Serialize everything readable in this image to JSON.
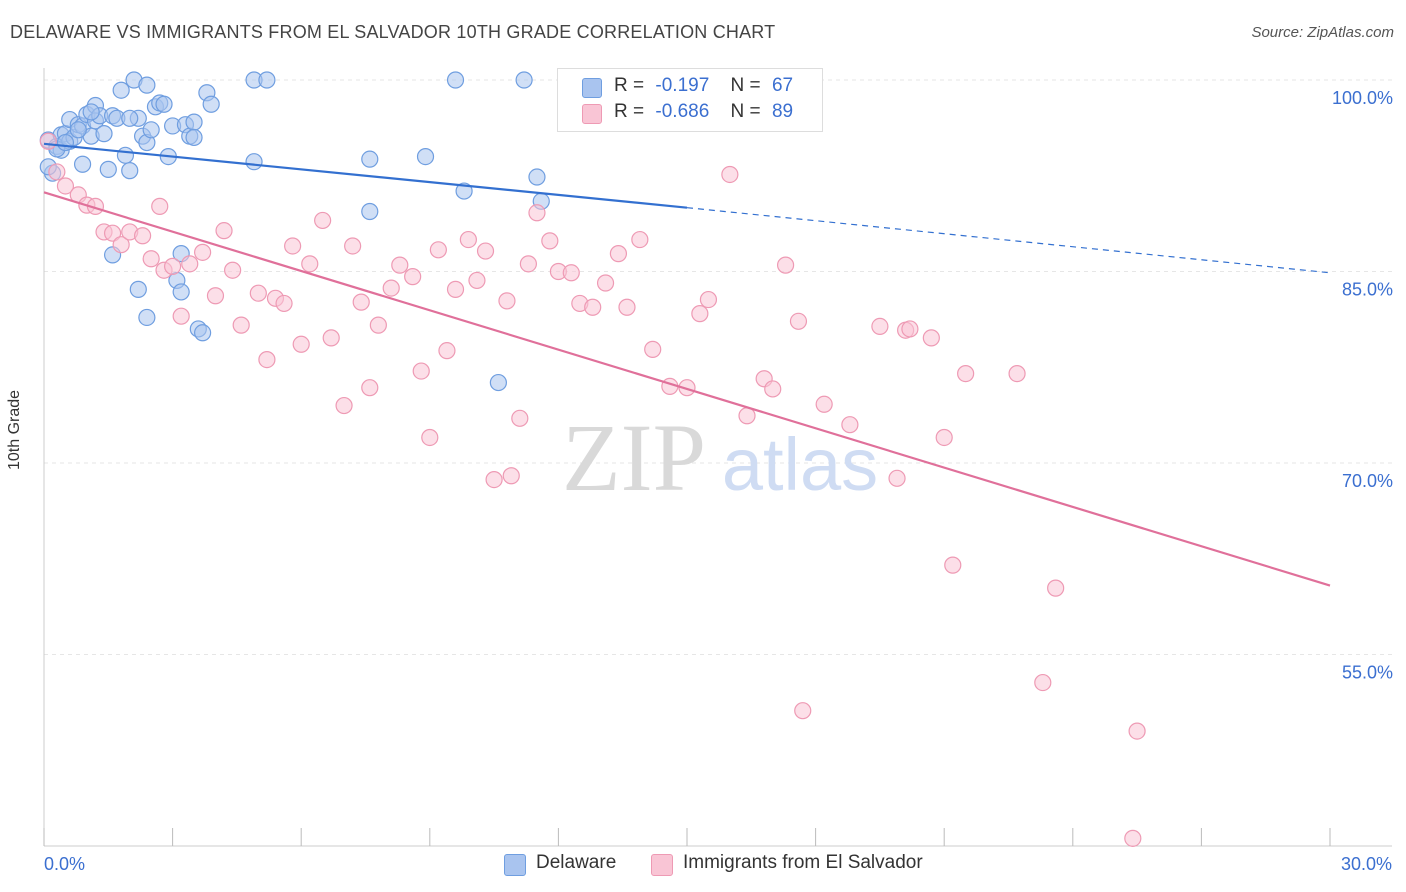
{
  "title": "DELAWARE VS IMMIGRANTS FROM EL SALVADOR 10TH GRADE CORRELATION CHART",
  "source": "Source: ZipAtlas.com",
  "watermark": {
    "zip": "ZIP",
    "atlas": "atlas"
  },
  "stats": [
    {
      "r_label": "R =",
      "r_value": "-0.197",
      "n_label": "N =",
      "n_value": "67",
      "color": "#a9c4ef",
      "border": "#6f9ee0"
    },
    {
      "r_label": "R =",
      "r_value": "-0.686",
      "n_label": "N =",
      "n_value": "89",
      "color": "#f9c5d5",
      "border": "#ee9ab4"
    }
  ],
  "legend": [
    {
      "label": "Delaware",
      "color": "#a9c4ef",
      "border": "#6f9ee0"
    },
    {
      "label": "Immigrants from El Salvador",
      "color": "#f9c5d5",
      "border": "#ee9ab4"
    }
  ],
  "chart_data": {
    "type": "scatter",
    "title": "DELAWARE VS IMMIGRANTS FROM EL SALVADOR 10TH GRADE CORRELATION CHART",
    "xlabel": "",
    "ylabel": "10th Grade",
    "xlim": [
      0,
      30
    ],
    "ylim": [
      40,
      100
    ],
    "x_tick_labels": [
      "0.0%",
      "30.0%"
    ],
    "y_tick_labels": [
      {
        "value": 100,
        "label": "100.0%"
      },
      {
        "value": 85,
        "label": "85.0%"
      },
      {
        "value": 70,
        "label": "70.0%"
      },
      {
        "value": 55,
        "label": "55.0%"
      }
    ],
    "grid": true,
    "series": [
      {
        "name": "Delaware",
        "color": "#6f9ee0",
        "fill": "#a9c4ef",
        "trend": {
          "x0": 0,
          "y0": 95.0,
          "x1": 15.0,
          "y1": 90.0,
          "dashed_to_x": 30.0,
          "dashed_to_y": 84.9,
          "color": "#3370d0"
        },
        "points": [
          [
            0.1,
            95.3
          ],
          [
            0.2,
            92.7
          ],
          [
            0.3,
            94.8
          ],
          [
            0.4,
            95.7
          ],
          [
            0.4,
            94.5
          ],
          [
            0.5,
            95.8
          ],
          [
            0.6,
            96.9
          ],
          [
            0.6,
            95.2
          ],
          [
            0.7,
            95.5
          ],
          [
            0.8,
            96.5
          ],
          [
            0.9,
            96.4
          ],
          [
            1.0,
            97.3
          ],
          [
            1.1,
            95.6
          ],
          [
            1.2,
            98.0
          ],
          [
            1.2,
            96.8
          ],
          [
            1.3,
            97.2
          ],
          [
            1.4,
            95.8
          ],
          [
            1.5,
            93.0
          ],
          [
            1.6,
            97.2
          ],
          [
            1.7,
            97.0
          ],
          [
            1.8,
            99.2
          ],
          [
            1.9,
            94.1
          ],
          [
            2.0,
            92.9
          ],
          [
            2.1,
            100
          ],
          [
            2.2,
            97.0
          ],
          [
            2.3,
            95.6
          ],
          [
            2.4,
            99.6
          ],
          [
            2.4,
            95.1
          ],
          [
            2.5,
            96.1
          ],
          [
            2.6,
            97.9
          ],
          [
            2.7,
            98.2
          ],
          [
            2.8,
            98.1
          ],
          [
            2.9,
            94.0
          ],
          [
            3.0,
            96.4
          ],
          [
            3.2,
            86.4
          ],
          [
            3.3,
            96.5
          ],
          [
            3.4,
            95.6
          ],
          [
            3.5,
            96.7
          ],
          [
            3.6,
            80.5
          ],
          [
            3.8,
            99.0
          ],
          [
            3.9,
            98.1
          ],
          [
            4.9,
            100
          ],
          [
            5.2,
            100
          ],
          [
            1.6,
            86.3
          ],
          [
            2.2,
            83.6
          ],
          [
            2.4,
            81.4
          ],
          [
            3.1,
            84.3
          ],
          [
            3.2,
            83.4
          ],
          [
            3.7,
            80.2
          ],
          [
            4.9,
            93.6
          ],
          [
            7.6,
            93.8
          ],
          [
            7.6,
            89.7
          ],
          [
            8.9,
            94.0
          ],
          [
            9.6,
            100
          ],
          [
            9.8,
            91.3
          ],
          [
            11.2,
            100
          ],
          [
            11.5,
            92.4
          ],
          [
            11.6,
            90.5
          ],
          [
            10.6,
            76.3
          ],
          [
            0.1,
            93.2
          ],
          [
            0.3,
            94.6
          ],
          [
            0.5,
            95.1
          ],
          [
            0.8,
            96.1
          ],
          [
            1.1,
            97.5
          ],
          [
            2.0,
            97.0
          ],
          [
            3.5,
            95.5
          ],
          [
            0.9,
            93.4
          ]
        ]
      },
      {
        "name": "Immigrants from El Salvador",
        "color": "#ee9ab4",
        "fill": "#f9c5d5",
        "trend": {
          "x0": 0,
          "y0": 91.2,
          "x1": 30.0,
          "y1": 60.4,
          "color": "#e0709a"
        },
        "points": [
          [
            0.1,
            95.2
          ],
          [
            0.3,
            92.8
          ],
          [
            0.5,
            91.7
          ],
          [
            0.8,
            91.0
          ],
          [
            1.0,
            90.2
          ],
          [
            1.2,
            90.1
          ],
          [
            1.4,
            88.1
          ],
          [
            1.6,
            88.0
          ],
          [
            1.8,
            87.1
          ],
          [
            2.0,
            88.1
          ],
          [
            2.3,
            87.8
          ],
          [
            2.5,
            86.0
          ],
          [
            2.8,
            85.1
          ],
          [
            3.0,
            85.4
          ],
          [
            3.2,
            81.5
          ],
          [
            3.4,
            85.6
          ],
          [
            3.7,
            86.5
          ],
          [
            2.7,
            90.1
          ],
          [
            4.2,
            88.2
          ],
          [
            4.4,
            85.1
          ],
          [
            4.0,
            83.1
          ],
          [
            4.6,
            80.8
          ],
          [
            5.0,
            83.3
          ],
          [
            5.2,
            78.1
          ],
          [
            5.4,
            82.9
          ],
          [
            5.6,
            82.5
          ],
          [
            5.8,
            87.0
          ],
          [
            6.0,
            79.3
          ],
          [
            6.2,
            85.6
          ],
          [
            6.5,
            89.0
          ],
          [
            6.7,
            79.8
          ],
          [
            7.0,
            74.5
          ],
          [
            7.2,
            87.0
          ],
          [
            7.4,
            82.6
          ],
          [
            7.6,
            75.9
          ],
          [
            7.8,
            80.8
          ],
          [
            8.1,
            83.7
          ],
          [
            8.3,
            85.5
          ],
          [
            8.6,
            84.6
          ],
          [
            8.8,
            77.2
          ],
          [
            9.0,
            72.0
          ],
          [
            9.2,
            86.7
          ],
          [
            9.4,
            78.8
          ],
          [
            9.6,
            83.6
          ],
          [
            9.9,
            87.5
          ],
          [
            10.1,
            84.3
          ],
          [
            10.3,
            86.6
          ],
          [
            10.5,
            68.7
          ],
          [
            10.8,
            82.7
          ],
          [
            11.1,
            73.5
          ],
          [
            11.3,
            85.6
          ],
          [
            11.5,
            89.6
          ],
          [
            11.8,
            87.4
          ],
          [
            12.0,
            85.0
          ],
          [
            12.3,
            84.9
          ],
          [
            12.5,
            82.5
          ],
          [
            12.8,
            82.2
          ],
          [
            13.1,
            84.1
          ],
          [
            13.4,
            86.4
          ],
          [
            13.6,
            82.2
          ],
          [
            13.9,
            87.5
          ],
          [
            14.2,
            78.9
          ],
          [
            14.6,
            76.0
          ],
          [
            15.0,
            75.9
          ],
          [
            15.3,
            81.7
          ],
          [
            15.5,
            82.8
          ],
          [
            16.0,
            92.6
          ],
          [
            16.4,
            73.7
          ],
          [
            16.8,
            76.6
          ],
          [
            17.0,
            75.8
          ],
          [
            17.3,
            85.5
          ],
          [
            17.6,
            81.1
          ],
          [
            18.2,
            74.6
          ],
          [
            18.8,
            73.0
          ],
          [
            19.5,
            80.7
          ],
          [
            20.1,
            80.4
          ],
          [
            19.9,
            68.8
          ],
          [
            20.7,
            79.8
          ],
          [
            21.0,
            72.0
          ],
          [
            21.5,
            77.0
          ],
          [
            20.2,
            80.5
          ],
          [
            21.2,
            62.0
          ],
          [
            23.6,
            60.2
          ],
          [
            23.3,
            52.8
          ],
          [
            22.7,
            77.0
          ],
          [
            17.7,
            50.6
          ],
          [
            25.5,
            49.0
          ],
          [
            25.4,
            40.6
          ],
          [
            10.9,
            69.0
          ]
        ]
      }
    ]
  }
}
